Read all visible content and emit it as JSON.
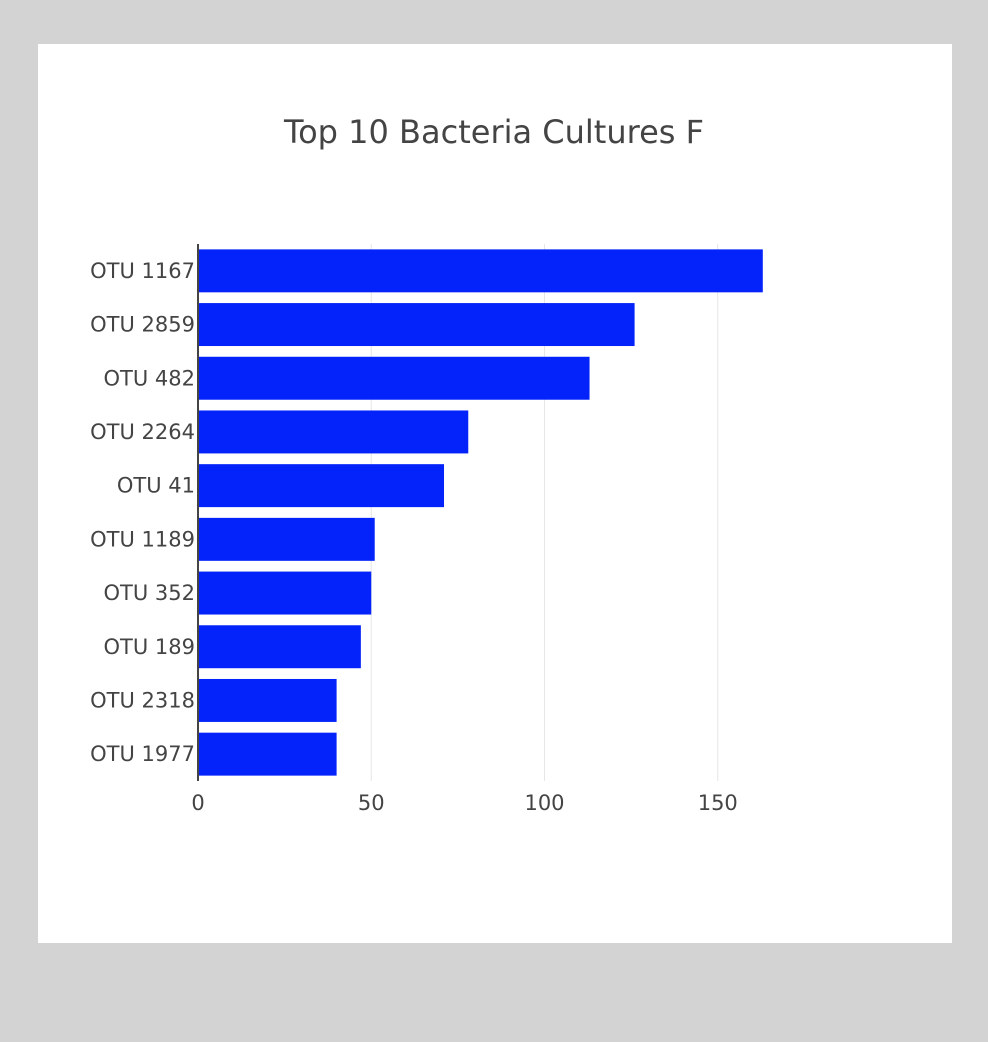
{
  "colors": {
    "bar": "#0323fa",
    "grid": "#e6e6e6",
    "axis": "#444444",
    "text": "#444444",
    "card": "#ffffff",
    "background": "#d3d3d3"
  },
  "chart_data": {
    "type": "bar",
    "orientation": "horizontal",
    "title": "Top 10 Bacteria Cultures F",
    "xlabel": "",
    "ylabel": "",
    "categories": [
      "OTU 1167",
      "OTU 2859",
      "OTU 482",
      "OTU 2264",
      "OTU 41",
      "OTU 1189",
      "OTU 352",
      "OTU 189",
      "OTU 2318",
      "OTU 1977"
    ],
    "values": [
      163,
      126,
      113,
      78,
      71,
      51,
      50,
      47,
      40,
      40
    ],
    "xlim": [
      0,
      190
    ],
    "xticks": [
      0,
      50,
      100,
      150
    ],
    "grid": true
  }
}
